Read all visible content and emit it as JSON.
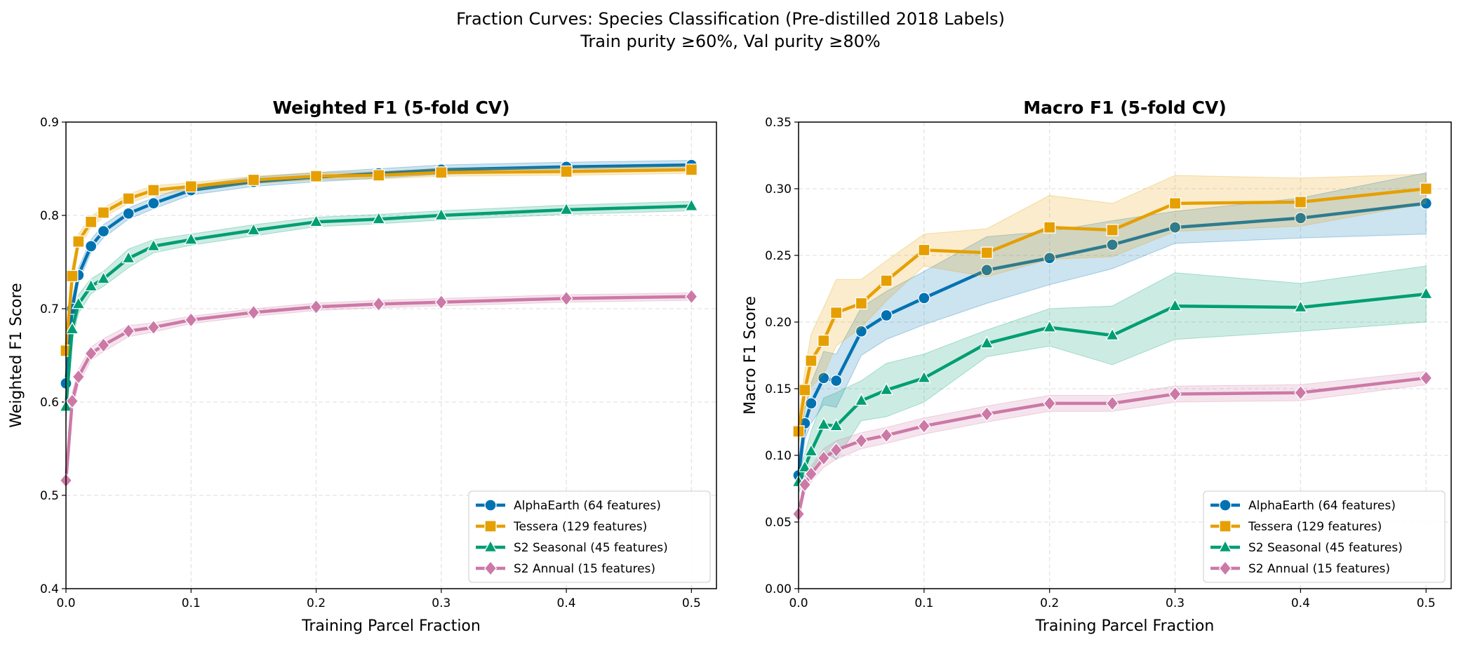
{
  "suptitle": "Fraction Curves: Species Classification (Pre-distilled 2018 Labels)",
  "subtitle": "Train purity ≥60%, Val purity ≥80%",
  "colors": {
    "AlphaEarth": "#0072b2",
    "Tessera": "#e69f00",
    "S2 Seasonal": "#009e73",
    "S2 Annual": "#cc79a7"
  },
  "chart_data": [
    {
      "type": "line",
      "title": "Weighted F1 (5-fold CV)",
      "xlabel": "Training Parcel Fraction",
      "ylabel": "Weighted F1 Score",
      "xlim": [
        0,
        0.52
      ],
      "ylim": [
        0.4,
        0.9
      ],
      "xticks": [
        "0.0",
        "0.1",
        "0.2",
        "0.3",
        "0.4",
        "0.5"
      ],
      "yticks": [
        "0.4",
        "0.5",
        "0.6",
        "0.7",
        "0.8",
        "0.9"
      ],
      "grid": true,
      "legend": "lower-right",
      "x": [
        0,
        0.005,
        0.01,
        0.02,
        0.03,
        0.05,
        0.07,
        0.1,
        0.15,
        0.2,
        0.25,
        0.3,
        0.4,
        0.5
      ],
      "series": [
        {
          "name": "AlphaEarth (64 features)",
          "marker": "circle",
          "values": [
            0.62,
            0.7,
            0.736,
            0.767,
            0.783,
            0.802,
            0.813,
            0.827,
            0.836,
            0.841,
            0.845,
            0.849,
            0.852,
            0.854
          ],
          "ci": [
            0.02,
            0.01,
            0.008,
            0.007,
            0.007,
            0.006,
            0.006,
            0.005,
            0.005,
            0.005,
            0.005,
            0.005,
            0.005,
            0.005
          ]
        },
        {
          "name": "Tessera (129 features)",
          "marker": "square",
          "values": [
            0.655,
            0.735,
            0.772,
            0.793,
            0.803,
            0.818,
            0.827,
            0.831,
            0.838,
            0.842,
            0.843,
            0.846,
            0.847,
            0.849
          ],
          "ci": [
            0.02,
            0.01,
            0.008,
            0.006,
            0.005,
            0.005,
            0.005,
            0.004,
            0.004,
            0.004,
            0.004,
            0.004,
            0.004,
            0.004
          ]
        },
        {
          "name": "S2 Seasonal (45 features)",
          "marker": "triangle",
          "values": [
            0.595,
            0.678,
            0.705,
            0.724,
            0.732,
            0.754,
            0.767,
            0.774,
            0.784,
            0.793,
            0.796,
            0.8,
            0.806,
            0.81
          ],
          "ci": [
            0.02,
            0.012,
            0.01,
            0.008,
            0.008,
            0.01,
            0.007,
            0.006,
            0.006,
            0.005,
            0.005,
            0.005,
            0.005,
            0.005
          ]
        },
        {
          "name": "S2 Annual (15 features)",
          "marker": "diamond",
          "values": [
            0.516,
            0.601,
            0.627,
            0.652,
            0.661,
            0.676,
            0.68,
            0.688,
            0.696,
            0.702,
            0.705,
            0.707,
            0.711,
            0.713
          ],
          "ci": [
            0.015,
            0.01,
            0.008,
            0.007,
            0.007,
            0.006,
            0.005,
            0.004,
            0.004,
            0.004,
            0.004,
            0.004,
            0.004,
            0.004
          ]
        }
      ]
    },
    {
      "type": "line",
      "title": "Macro F1 (5-fold CV)",
      "xlabel": "Training Parcel Fraction",
      "ylabel": "Macro F1 Score",
      "xlim": [
        0,
        0.52
      ],
      "ylim": [
        0,
        0.35
      ],
      "xticks": [
        "0.0",
        "0.1",
        "0.2",
        "0.3",
        "0.4",
        "0.5"
      ],
      "yticks": [
        "0.00",
        "0.05",
        "0.10",
        "0.15",
        "0.20",
        "0.25",
        "0.30",
        "0.35"
      ],
      "grid": true,
      "legend": "lower-right",
      "x": [
        0,
        0.005,
        0.01,
        0.02,
        0.03,
        0.05,
        0.07,
        0.1,
        0.15,
        0.2,
        0.25,
        0.3,
        0.4,
        0.5
      ],
      "series": [
        {
          "name": "AlphaEarth (64 features)",
          "marker": "circle",
          "values": [
            0.085,
            0.124,
            0.139,
            0.158,
            0.156,
            0.193,
            0.205,
            0.218,
            0.239,
            0.248,
            0.258,
            0.271,
            0.278,
            0.289
          ],
          "ci": [
            0.01,
            0.012,
            0.015,
            0.02,
            0.02,
            0.018,
            0.018,
            0.02,
            0.025,
            0.02,
            0.018,
            0.012,
            0.015,
            0.023
          ]
        },
        {
          "name": "Tessera (129 features)",
          "marker": "square",
          "values": [
            0.118,
            0.149,
            0.171,
            0.186,
            0.207,
            0.214,
            0.231,
            0.254,
            0.252,
            0.271,
            0.269,
            0.289,
            0.29,
            0.3
          ],
          "ci": [
            0.01,
            0.015,
            0.02,
            0.025,
            0.025,
            0.018,
            0.015,
            0.012,
            0.018,
            0.024,
            0.02,
            0.021,
            0.018,
            0.011
          ]
        },
        {
          "name": "S2 Seasonal (45 features)",
          "marker": "triangle",
          "values": [
            0.08,
            0.091,
            0.103,
            0.123,
            0.122,
            0.141,
            0.149,
            0.158,
            0.184,
            0.196,
            0.19,
            0.212,
            0.211,
            0.221
          ],
          "ci": [
            0.008,
            0.01,
            0.015,
            0.02,
            0.025,
            0.015,
            0.02,
            0.018,
            0.01,
            0.014,
            0.022,
            0.025,
            0.018,
            0.021
          ]
        },
        {
          "name": "S2 Annual (15 features)",
          "marker": "diamond",
          "values": [
            0.056,
            0.078,
            0.086,
            0.098,
            0.104,
            0.111,
            0.115,
            0.122,
            0.131,
            0.139,
            0.139,
            0.146,
            0.147,
            0.158
          ],
          "ci": [
            0.005,
            0.006,
            0.006,
            0.007,
            0.007,
            0.006,
            0.006,
            0.006,
            0.006,
            0.006,
            0.006,
            0.006,
            0.006,
            0.005
          ]
        }
      ]
    }
  ]
}
